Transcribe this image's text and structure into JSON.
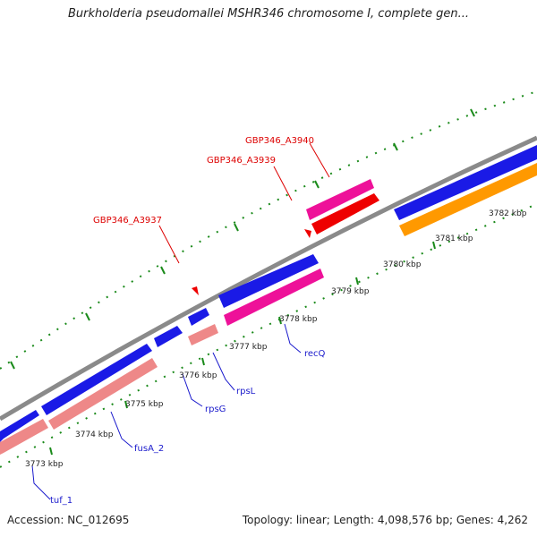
{
  "title": "Burkholderia pseudomallei MSHR346 chromosome I, complete gen...",
  "footer": {
    "accession": "Accession: NC_012695",
    "stats": "Topology: linear; Length: 4,098,576 bp; Genes: 4,262"
  },
  "colors": {
    "backbone": "#8a8a8a",
    "forward_gene": "#1a1ae6",
    "orange_gene": "#ff9900",
    "reverse_light": "#ee8888",
    "reverse_pink": "#ee1199",
    "reverse_red": "#ee0000",
    "ticks": "#1a8a1a",
    "forward_label": "#1a1acc",
    "reverse_label": "#dd0000"
  },
  "ticks": [
    {
      "kbp": 3773,
      "label": "3773 kbp"
    },
    {
      "kbp": 3774,
      "label": "3774 kbp"
    },
    {
      "kbp": 3775,
      "label": "3775 kbp"
    },
    {
      "kbp": 3776,
      "label": "3776 kbp"
    },
    {
      "kbp": 3777,
      "label": "3777 kbp"
    },
    {
      "kbp": 3778,
      "label": "3778 kbp"
    },
    {
      "kbp": 3779,
      "label": "3779 kbp"
    },
    {
      "kbp": 3780,
      "label": "3780 kbp"
    },
    {
      "kbp": 3781,
      "label": "3781 kbp"
    },
    {
      "kbp": 3782,
      "label": "3782 kbp"
    }
  ],
  "gene_labels_forward": [
    "tuf_1",
    "fusA_2",
    "rpsG",
    "rpsL",
    "recQ"
  ],
  "gene_labels_reverse": [
    "GBP346_A3937",
    "GBP346_A3939",
    "GBP346_A3940"
  ]
}
